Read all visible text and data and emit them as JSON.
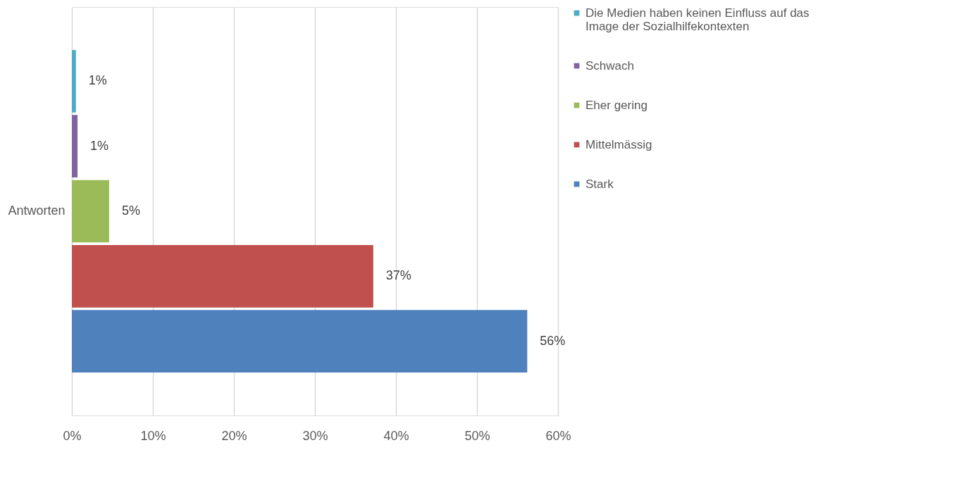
{
  "chart_data": {
    "type": "bar",
    "orientation": "horizontal",
    "categories": [
      "Antworten"
    ],
    "series": [
      {
        "name": "Die Medien haben keinen Einfluss auf das Image der Sozialhilfekontexten",
        "color": "#4bacc6",
        "values": [
          0.5
        ],
        "value_labels": [
          "1%"
        ]
      },
      {
        "name": "Schwach",
        "color": "#8064a2",
        "values": [
          0.7
        ],
        "value_labels": [
          "1%"
        ]
      },
      {
        "name": "Eher gering",
        "color": "#9bbb59",
        "values": [
          4.6
        ],
        "value_labels": [
          "5%"
        ]
      },
      {
        "name": "Mittelmässig",
        "color": "#c0504d",
        "values": [
          37.2
        ],
        "value_labels": [
          "37%"
        ]
      },
      {
        "name": "Stark",
        "color": "#4f81bd",
        "values": [
          56.2
        ],
        "value_labels": [
          "56%"
        ]
      }
    ],
    "xlim": [
      0,
      60
    ],
    "xticks": [
      {
        "value": 0,
        "label": "0%"
      },
      {
        "value": 10,
        "label": "10%"
      },
      {
        "value": 20,
        "label": "20%"
      },
      {
        "value": 30,
        "label": "30%"
      },
      {
        "value": 40,
        "label": "40%"
      },
      {
        "value": 50,
        "label": "50%"
      },
      {
        "value": 60,
        "label": "60%"
      }
    ],
    "grid": "x",
    "legend": "right"
  }
}
